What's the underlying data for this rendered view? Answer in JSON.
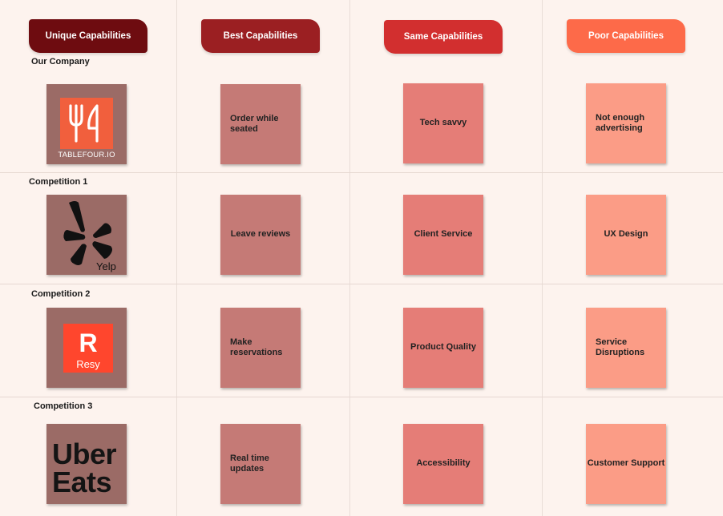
{
  "headers": [
    {
      "label": "Unique Capabilities",
      "color": "#6e0c10"
    },
    {
      "label": "Best Capabilities",
      "color": "#9b1f22"
    },
    {
      "label": "Same Capabilities",
      "color": "#d22f2f"
    },
    {
      "label": "Poor Capabilities",
      "color": "#fd6a49"
    }
  ],
  "rows": [
    {
      "label": "Our Company",
      "logo": {
        "name": "tablefour-logo",
        "text": "TABLEFOUR.IO"
      },
      "best": "Order while seated",
      "same": "Tech savvy",
      "poor": "Not enough advertising"
    },
    {
      "label": "Competition 1",
      "logo": {
        "name": "yelp-logo",
        "text": "Yelp"
      },
      "best": "Leave reviews",
      "same": "Client Service",
      "poor": "UX Design"
    },
    {
      "label": "Competition 2",
      "logo": {
        "name": "resy-logo",
        "mark": "R",
        "text": "Resy"
      },
      "best": "Make reservations",
      "same": "Product Quality",
      "poor": "Service Disruptions"
    },
    {
      "label": "Competition 3",
      "logo": {
        "name": "uber-eats-logo",
        "line1": "Uber",
        "line2": "Eats"
      },
      "best": "Real time updates",
      "same": "Accessibility",
      "poor": "Customer Support"
    }
  ],
  "colors": {
    "background": "#fdf3ee",
    "logo_card": "#9b6b66",
    "best_note": "#c57a76",
    "same_note": "#e57d77",
    "poor_note": "#fb9c86"
  }
}
